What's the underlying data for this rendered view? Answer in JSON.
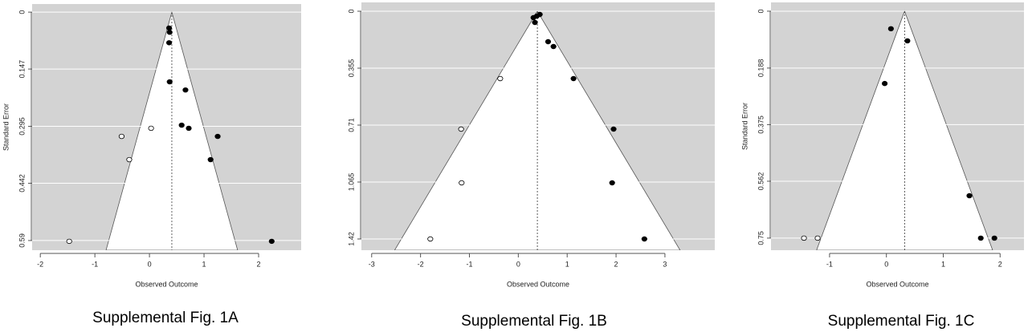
{
  "chart_data": [
    {
      "type": "scatter",
      "caption": "Supplemental Fig. 1A",
      "xlabel": "Observed Outcome",
      "ylabel": "Standard Error",
      "xlim": [
        -2.15,
        2.78
      ],
      "ylim": [
        -0.021,
        0.615
      ],
      "y_inverted": true,
      "center": 0.41,
      "xticks": [
        -2,
        -1,
        0,
        1,
        2
      ],
      "yticks": [
        0,
        0.147,
        0.295,
        0.442,
        0.59
      ],
      "grid": true,
      "series": [
        {
          "marker": "filled",
          "color": "#000000",
          "x": [
            0.36,
            0.37,
            0.36,
            0.37,
            0.66,
            0.59,
            0.72,
            1.25,
            1.12,
            2.24
          ],
          "values": [
            0.041,
            0.052,
            0.079,
            0.18,
            0.201,
            0.292,
            0.3,
            0.321,
            0.381,
            0.592
          ]
        },
        {
          "marker": "open",
          "color": "#000000",
          "x": [
            -1.47,
            -0.51,
            0.03,
            -0.37
          ],
          "values": [
            0.592,
            0.321,
            0.3,
            0.381
          ]
        }
      ]
    },
    {
      "type": "scatter",
      "caption": "Supplemental Fig. 1B",
      "xlabel": "Observed Outcome",
      "xlim": [
        -3.21,
        4.02
      ],
      "ylim": [
        -0.055,
        1.49
      ],
      "y_inverted": true,
      "center": 0.39,
      "xticks": [
        -3,
        -2,
        -1,
        0,
        1,
        2,
        3
      ],
      "yticks": [
        0,
        0.355,
        0.71,
        1.065,
        1.42
      ],
      "grid": true,
      "series": [
        {
          "marker": "filled",
          "color": "#000000",
          "x": [
            0.44,
            0.38,
            0.31,
            0.34,
            0.61,
            0.72,
            1.13,
            1.95,
            1.92,
            2.58
          ],
          "values": [
            0.02,
            0.03,
            0.04,
            0.07,
            0.19,
            0.22,
            0.42,
            0.735,
            1.07,
            1.42
          ]
        },
        {
          "marker": "open",
          "color": "#000000",
          "x": [
            -0.37,
            -1.17,
            -1.16,
            -1.8
          ],
          "values": [
            0.42,
            0.735,
            1.07,
            1.42
          ]
        }
      ]
    },
    {
      "type": "scatter",
      "caption": "Supplemental Fig. 1C",
      "xlabel": "Observed Outcome",
      "ylabel": "Standard Error",
      "xlim": [
        -2.03,
        2.42
      ],
      "ylim": [
        -0.029,
        0.79
      ],
      "y_inverted": true,
      "center": 0.32,
      "xticks": [
        -1,
        0,
        1,
        2
      ],
      "yticks": [
        0,
        0.188,
        0.375,
        0.562,
        0.75
      ],
      "grid": true,
      "series": [
        {
          "marker": "filled",
          "color": "#000000",
          "x": [
            0.08,
            0.37,
            -0.03,
            1.46,
            1.66,
            1.9
          ],
          "values": [
            0.058,
            0.098,
            0.239,
            0.61,
            0.75,
            0.75
          ]
        },
        {
          "marker": "open",
          "color": "#000000",
          "x": [
            -1.45,
            -1.21
          ],
          "values": [
            0.75,
            0.75
          ]
        }
      ]
    }
  ]
}
